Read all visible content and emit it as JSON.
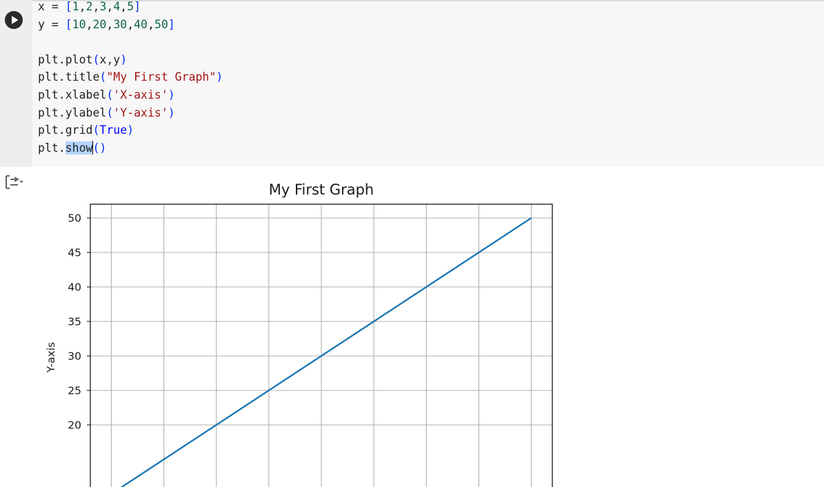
{
  "notebook": {
    "cell": {
      "run_icon": "play-icon",
      "lines": [
        [
          {
            "t": "x = ",
            "c": "plain"
          },
          {
            "t": "[",
            "c": "br"
          },
          {
            "t": "1",
            "c": "num"
          },
          {
            "t": ",",
            "c": "plain"
          },
          {
            "t": "2",
            "c": "num"
          },
          {
            "t": ",",
            "c": "plain"
          },
          {
            "t": "3",
            "c": "num"
          },
          {
            "t": ",",
            "c": "plain"
          },
          {
            "t": "4",
            "c": "num"
          },
          {
            "t": ",",
            "c": "plain"
          },
          {
            "t": "5",
            "c": "num"
          },
          {
            "t": "]",
            "c": "br"
          }
        ],
        [
          {
            "t": "y = ",
            "c": "plain"
          },
          {
            "t": "[",
            "c": "br"
          },
          {
            "t": "10",
            "c": "num"
          },
          {
            "t": ",",
            "c": "plain"
          },
          {
            "t": "20",
            "c": "num"
          },
          {
            "t": ",",
            "c": "plain"
          },
          {
            "t": "30",
            "c": "num"
          },
          {
            "t": ",",
            "c": "plain"
          },
          {
            "t": "40",
            "c": "num"
          },
          {
            "t": ",",
            "c": "plain"
          },
          {
            "t": "50",
            "c": "num"
          },
          {
            "t": "]",
            "c": "br"
          }
        ],
        [],
        [
          {
            "t": "plt.plot",
            "c": "plain"
          },
          {
            "t": "(",
            "c": "br"
          },
          {
            "t": "x,y",
            "c": "plain"
          },
          {
            "t": ")",
            "c": "br"
          }
        ],
        [
          {
            "t": "plt.title",
            "c": "plain"
          },
          {
            "t": "(",
            "c": "br"
          },
          {
            "t": "\"My First Graph\"",
            "c": "str"
          },
          {
            "t": ")",
            "c": "br"
          }
        ],
        [
          {
            "t": "plt.xlabel",
            "c": "plain"
          },
          {
            "t": "(",
            "c": "br"
          },
          {
            "t": "'X-axis'",
            "c": "str"
          },
          {
            "t": ")",
            "c": "br"
          }
        ],
        [
          {
            "t": "plt.ylabel",
            "c": "plain"
          },
          {
            "t": "(",
            "c": "br"
          },
          {
            "t": "'Y-axis'",
            "c": "str"
          },
          {
            "t": ")",
            "c": "br"
          }
        ],
        [
          {
            "t": "plt.grid",
            "c": "plain"
          },
          {
            "t": "(",
            "c": "br"
          },
          {
            "t": "True",
            "c": "kw"
          },
          {
            "t": ")",
            "c": "br"
          }
        ],
        [
          {
            "t": "plt.",
            "c": "plain"
          },
          {
            "t": "show",
            "c": "sel"
          },
          {
            "t": "",
            "c": "caret"
          },
          {
            "t": "()",
            "c": "br"
          }
        ]
      ]
    },
    "output": {
      "icon": "output-toggle-icon"
    }
  },
  "chart_data": {
    "type": "line",
    "title": "My First Graph",
    "ylabel": "Y-axis",
    "x": [
      1,
      2,
      3,
      4,
      5
    ],
    "series": [
      {
        "values": [
          10,
          20,
          30,
          40,
          50
        ],
        "color": "#1f77b4"
      }
    ],
    "y_ticks": [
      20,
      25,
      30,
      35,
      40,
      45,
      50
    ],
    "xlim": [
      0.8,
      5.2
    ],
    "ylim": [
      8,
      52
    ],
    "grid": true
  }
}
